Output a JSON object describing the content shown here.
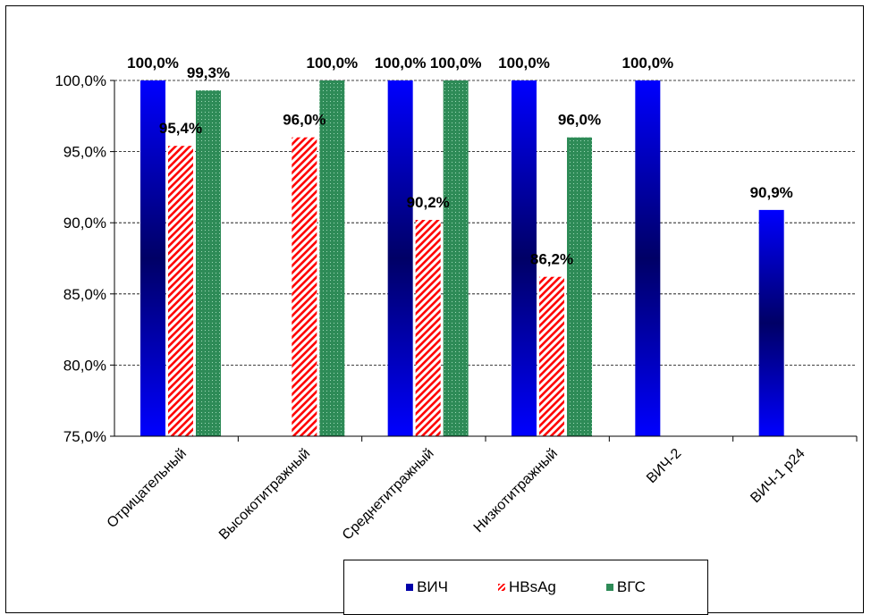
{
  "chart_data": {
    "type": "bar",
    "categories": [
      "Отрицательный",
      "Высокотитражный",
      "Среднетитражный",
      "Низкотитражный",
      "ВИЧ-2",
      "ВИЧ-1 p24"
    ],
    "series": [
      {
        "name": "ВИЧ",
        "color": "#0000ff",
        "pattern": "gradient",
        "values": [
          100.0,
          null,
          100.0,
          100.0,
          100.0,
          90.9
        ]
      },
      {
        "name": "HBsAg",
        "color": "#ff0000",
        "pattern": "diagonal-stripes",
        "values": [
          95.4,
          96.0,
          90.2,
          86.2,
          null,
          null
        ]
      },
      {
        "name": "ВГС",
        "color": "#2e8b57",
        "pattern": "dotted",
        "values": [
          99.3,
          100.0,
          100.0,
          96.0,
          null,
          null
        ]
      }
    ],
    "data_labels": [
      [
        "100,0%",
        null,
        "100,0%",
        "100,0%",
        "100,0%",
        "90,9%"
      ],
      [
        "95,4%",
        "96,0%",
        "90,2%",
        "86,2%",
        null,
        null
      ],
      [
        "99,3%",
        "100,0%",
        "100,0%",
        "96,0%",
        null,
        null
      ]
    ],
    "ylim": [
      75,
      100
    ],
    "yticks": [
      75,
      80,
      85,
      90,
      95,
      100
    ],
    "ytick_labels": [
      "75,0%",
      "80,0%",
      "85,0%",
      "90,0%",
      "95,0%",
      "100,0%"
    ],
    "grid": "horizontal dashed",
    "legend_position": "bottom",
    "title": "",
    "xlabel": "",
    "ylabel": ""
  }
}
